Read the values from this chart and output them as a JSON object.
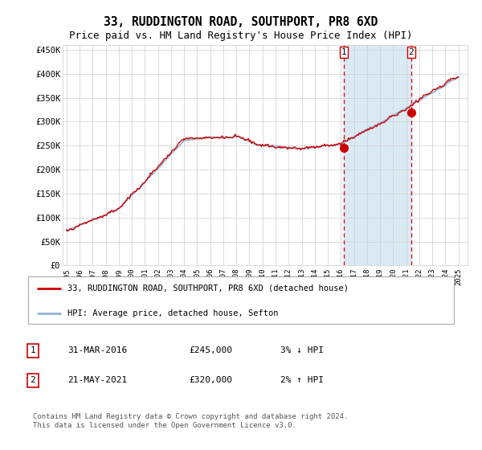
{
  "title": "33, RUDDINGTON ROAD, SOUTHPORT, PR8 6XD",
  "subtitle": "Price paid vs. HM Land Registry's House Price Index (HPI)",
  "title_fontsize": 10.5,
  "subtitle_fontsize": 9,
  "ylabel_ticks": [
    "£0",
    "£50K",
    "£100K",
    "£150K",
    "£200K",
    "£250K",
    "£300K",
    "£350K",
    "£400K",
    "£450K"
  ],
  "ytick_values": [
    0,
    50000,
    100000,
    150000,
    200000,
    250000,
    300000,
    350000,
    400000,
    450000
  ],
  "ylim": [
    0,
    460000
  ],
  "xlim_start": 1994.7,
  "xlim_end": 2025.7,
  "year_start": 1995,
  "year_end": 2025,
  "background_color": "#ffffff",
  "plot_bg_color": "#ffffff",
  "grid_color": "#cccccc",
  "highlight_color": "#daeaf5",
  "hpi_line_color": "#92b4d4",
  "price_line_color": "#cc0000",
  "purchase1_date_x": 2016.245,
  "purchase1_price": 245000,
  "purchase2_date_x": 2021.385,
  "purchase2_price": 320000,
  "legend_label1": "33, RUDDINGTON ROAD, SOUTHPORT, PR8 6XD (detached house)",
  "legend_label2": "HPI: Average price, detached house, Sefton",
  "table_row1_label": "1",
  "table_row1_date": "31-MAR-2016",
  "table_row1_price": "£245,000",
  "table_row1_pct": "3% ↓ HPI",
  "table_row2_label": "2",
  "table_row2_date": "21-MAY-2021",
  "table_row2_price": "£320,000",
  "table_row2_pct": "2% ↑ HPI",
  "footer": "Contains HM Land Registry data © Crown copyright and database right 2024.\nThis data is licensed under the Open Government Licence v3.0.",
  "font_family": "monospace"
}
